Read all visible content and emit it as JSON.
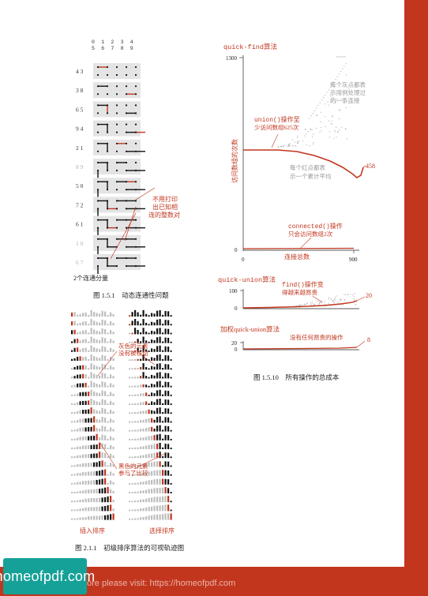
{
  "fig_1_5_1": {
    "header_top": "0 1 2 3 4",
    "header_bottom": "5 6 7 8 9",
    "pairs": [
      {
        "label": "4 3",
        "faded": false
      },
      {
        "label": "3 8",
        "faded": false
      },
      {
        "label": "6 5",
        "faded": false
      },
      {
        "label": "9 4",
        "faded": false
      },
      {
        "label": "2 1",
        "faded": false
      },
      {
        "label": "8 9",
        "faded": true
      },
      {
        "label": "5 0",
        "faded": false
      },
      {
        "label": "7 2",
        "faded": false
      },
      {
        "label": "6 1",
        "faded": false
      },
      {
        "label": "1 0",
        "faded": true
      },
      {
        "label": "6 7",
        "faded": true
      }
    ],
    "annotation": [
      "不用打印",
      "出已知相",
      "连的整数对"
    ],
    "components_label": "2个连通分量",
    "caption": "图 1.5.1　动态连通性问题",
    "colors": {
      "accent": "#c2361e",
      "panel": "#e4e4e4",
      "faded_text": "#b0b0b0"
    }
  },
  "fig_2_1_1": {
    "annotation_gray": [
      "灰色的元素",
      "没有被移动"
    ],
    "annotation_black": [
      "黑色的元素",
      "参与了比较"
    ],
    "label_insertion": "插入排序",
    "label_selection": "选择排序",
    "caption": "图 2.1.1　初级排序算法的可视轨迹图"
  },
  "fig_1_5_10": {
    "title_quick_find": "quick-find算法",
    "ytick_top": "1300",
    "ytick_zero": "0",
    "ylabel": "访问数组的次数",
    "xtick_start": "0",
    "xtick_end": "900",
    "xlabel": "连接总数",
    "note_gray_dots": [
      "每个灰点都表",
      "示用例处理过",
      "的一条连接"
    ],
    "note_union": [
      "union()操作至",
      "少访问数组625次"
    ],
    "note_red_dots": [
      "每个红点都表",
      "示一个累计平均"
    ],
    "end_value_qf": "458",
    "note_connected": [
      "connected()操作",
      "只会访问数组2次"
    ],
    "title_quick_union": "quick-union算法",
    "qu_ytick_top": "100",
    "qu_ytick_zero": "0",
    "note_find": [
      "find()操作变",
      "得越来越昂贵"
    ],
    "end_value_qu": "20",
    "title_weighted": "加权quick-union算法",
    "w_ytick_top": "20",
    "w_ytick_zero": "0",
    "note_weighted": "没有任何昂贵的操作",
    "end_value_w": "8",
    "caption": "图 1.5.10　所有操作的总成本"
  },
  "footer": {
    "logo_text": "homeofpdf.com",
    "strip_text": "ore please visit: https://homeofpdf.com"
  }
}
